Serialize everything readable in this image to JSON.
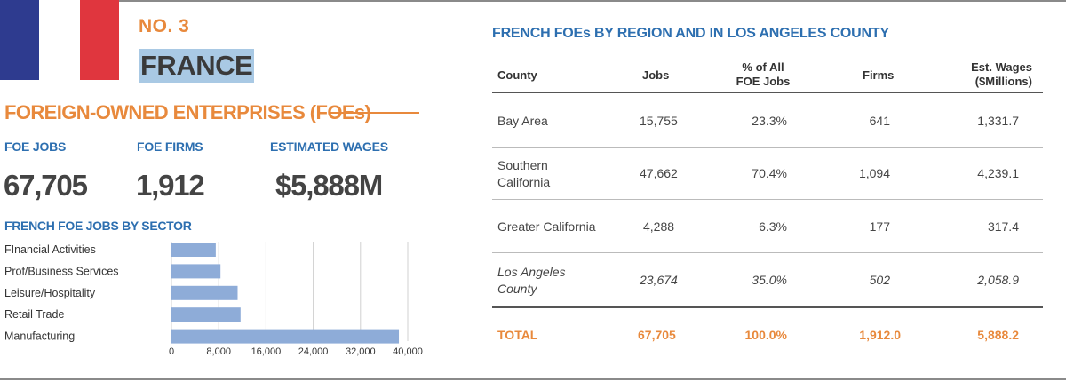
{
  "colors": {
    "flag_blue": "#2e3b8f",
    "flag_white": "#ffffff",
    "flag_red": "#e0363e",
    "orange": "#e8893c",
    "blue": "#2d6fb0",
    "country_highlight": "#a9c9e4",
    "country_text": "#3a3a3a",
    "bar": "#8eacd8"
  },
  "header": {
    "number": "NO. 3",
    "country": "FRANCE"
  },
  "foe": {
    "heading": "FOREIGN-OWNED ENTERPRISES (FOEs)",
    "stats": [
      {
        "label": "FOE JOBS",
        "value": "67,705"
      },
      {
        "label": "FOE FIRMS",
        "value": "1,912"
      },
      {
        "label": "ESTIMATED WAGES",
        "value": "$5,888M"
      }
    ]
  },
  "sector_chart_title": "FRENCH FOE JOBS BY SECTOR",
  "chart_data": {
    "type": "bar",
    "orientation": "horizontal",
    "title": "FRENCH FOE JOBS BY SECTOR",
    "categories": [
      "FInancial Activities",
      "Prof/Business Services",
      "Leisure/Hospitality",
      "Retail Trade",
      "Manufacturing"
    ],
    "values": [
      7500,
      8300,
      11200,
      11700,
      38500
    ],
    "xlim": [
      0,
      40000
    ],
    "xticks": [
      0,
      8000,
      16000,
      24000,
      32000,
      40000
    ],
    "xtick_labels": [
      "0",
      "8,000",
      "16,000",
      "24,000",
      "32,000",
      "40,000"
    ],
    "grid": true
  },
  "table": {
    "title": "FRENCH FOEs BY REGION AND IN LOS ANGELES COUNTY",
    "headers": {
      "county": "County",
      "jobs": "Jobs",
      "pct_line1": "% of All",
      "pct_line2": "FOE Jobs",
      "firms": "Firms",
      "wages_line1": "Est. Wages",
      "wages_line2": "($Millions)"
    },
    "rows": [
      {
        "county": "Bay Area",
        "county_line2": "",
        "jobs": "15,755",
        "pct": "23.3%",
        "firms": "641",
        "wages": "1,331.7"
      },
      {
        "county": "Southern",
        "county_line2": "California",
        "jobs": "47,662",
        "pct": "70.4%",
        "firms": "1,094",
        "wages": "4,239.1"
      },
      {
        "county": "Greater California",
        "county_line2": "",
        "jobs": "4,288",
        "pct": "6.3%",
        "firms": "177",
        "wages": "317.4"
      },
      {
        "county": "Los Angeles",
        "county_line2": "County",
        "jobs": "23,674",
        "pct": "35.0%",
        "firms": "502",
        "wages": "2,058.9"
      }
    ],
    "total": {
      "county": "TOTAL",
      "jobs": "67,705",
      "pct": "100.0%",
      "firms": "1,912.0",
      "wages": "5,888.2"
    }
  }
}
